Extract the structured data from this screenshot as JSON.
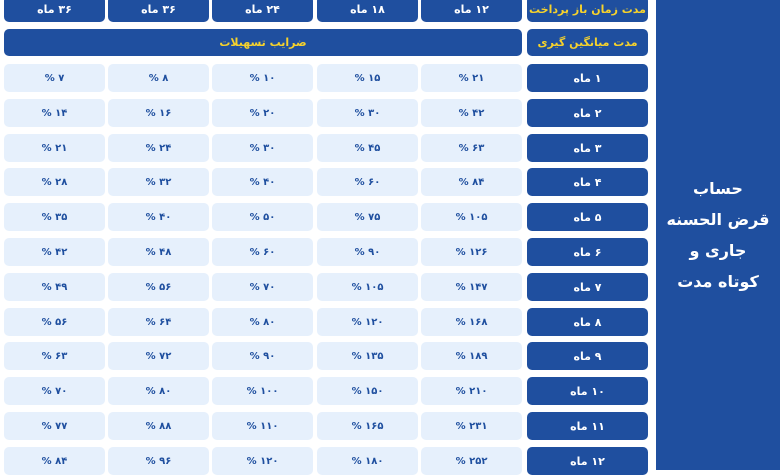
{
  "side_title": [
    "حساب",
    "قرض الحسنه",
    "جاری و",
    "کوتاه مدت"
  ],
  "header": {
    "payment_label": "مدت زمان باز پرداخت",
    "average_label": "مدت میانگین گیری",
    "coefficients_label": "ضرایب تسهیلات",
    "periods": [
      "۱۲ ماه",
      "۱۸ ماه",
      "۲۴ ماه",
      "۳۶ ماه",
      "۳۶ ماه"
    ]
  },
  "rows": [
    {
      "label": "۱ ماه",
      "values": [
        "۲۱ %",
        "۱۵ %",
        "۱۰ %",
        "۸ %",
        "۷ %"
      ]
    },
    {
      "label": "۲ ماه",
      "values": [
        "۴۲ %",
        "۳۰ %",
        "۲۰ %",
        "۱۶ %",
        "۱۴ %"
      ]
    },
    {
      "label": "۳ ماه",
      "values": [
        "۶۳ %",
        "۴۵ %",
        "۳۰ %",
        "۲۴ %",
        "۲۱ %"
      ]
    },
    {
      "label": "۴ ماه",
      "values": [
        "۸۴ %",
        "۶۰ %",
        "۴۰ %",
        "۳۲ %",
        "۲۸ %"
      ]
    },
    {
      "label": "۵ ماه",
      "values": [
        "۱۰۵ %",
        "۷۵ %",
        "۵۰ %",
        "۴۰ %",
        "۳۵ %"
      ]
    },
    {
      "label": "۶ ماه",
      "values": [
        "۱۲۶ %",
        "۹۰ %",
        "۶۰ %",
        "۴۸ %",
        "۴۲ %"
      ]
    },
    {
      "label": "۷ ماه",
      "values": [
        "۱۴۷ %",
        "۱۰۵ %",
        "۷۰ %",
        "۵۶ %",
        "۴۹ %"
      ]
    },
    {
      "label": "۸ ماه",
      "values": [
        "۱۶۸ %",
        "۱۲۰ %",
        "۸۰ %",
        "۶۴ %",
        "۵۶ %"
      ]
    },
    {
      "label": "۹ ماه",
      "values": [
        "۱۸۹ %",
        "۱۳۵ %",
        "۹۰ %",
        "۷۲ %",
        "۶۳ %"
      ]
    },
    {
      "label": "۱۰ ماه",
      "values": [
        "۲۱۰ %",
        "۱۵۰ %",
        "۱۰۰ %",
        "۸۰ %",
        "۷۰ %"
      ]
    },
    {
      "label": "۱۱ ماه",
      "values": [
        "۲۳۱ %",
        "۱۶۵ %",
        "۱۱۰ %",
        "۸۸ %",
        "۷۷ %"
      ]
    },
    {
      "label": "۱۲ ماه",
      "values": [
        "۲۵۲ %",
        "۱۸۰ %",
        "۱۲۰ %",
        "۹۶ %",
        "۸۴ %"
      ]
    }
  ],
  "colors": {
    "primary": "#1f4f9f",
    "header_accent": "#f6d22c",
    "cell_background": "#e6f0fc"
  }
}
